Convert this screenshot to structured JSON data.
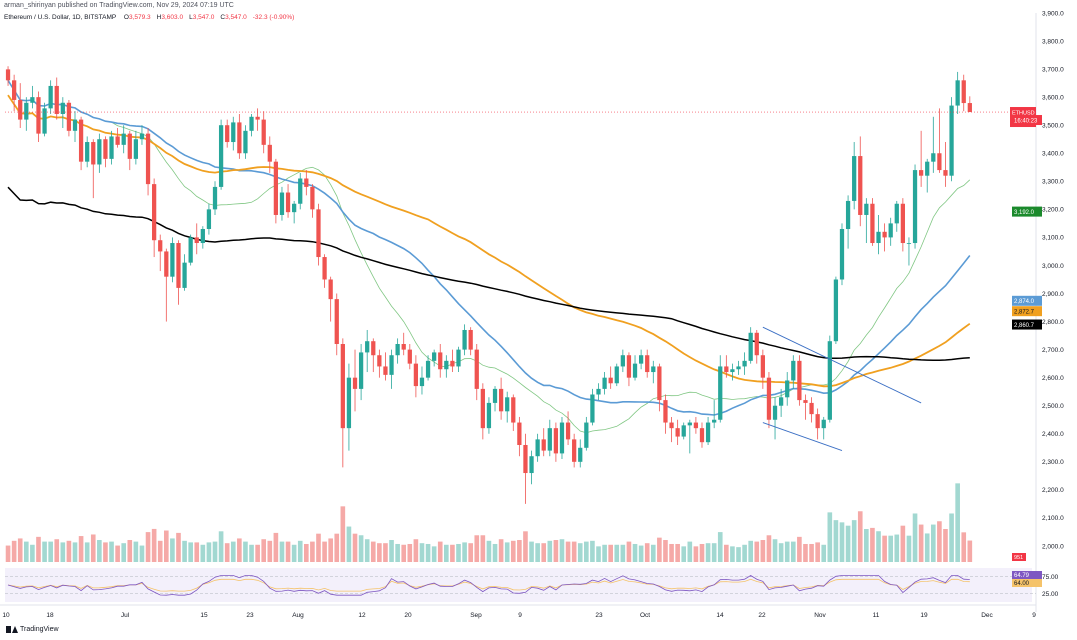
{
  "header": {
    "published": "arman_shirinyan published on TradingView.com, Nov 29, 2024 07:19 UTC",
    "symbol": "Ethereum / U.S. Dollar, 1D, BITSTAMP",
    "ohlc": [
      {
        "label": "O",
        "value": "3,579.3"
      },
      {
        "label": "H",
        "value": "3,603.0"
      },
      {
        "label": "L",
        "value": "3,547.0"
      },
      {
        "label": "C",
        "value": "3,547.0"
      },
      {
        "label": "",
        "value": "-32.3 (-0.90%)"
      }
    ]
  },
  "footer": {
    "brand": "TradingView"
  },
  "colors": {
    "up": "#26a69a",
    "down": "#ef5350",
    "vol_up": "#a2d8d1",
    "vol_down": "#f5a9a7",
    "ema_black": "#000000",
    "ema_orange": "#f0a020",
    "ema_blue": "#5b9bd5",
    "ema_green": "#81c784",
    "rsi": "#7e57c2",
    "rsi_ma": "#f5c36a",
    "wedge": "#3b6fc4"
  },
  "chart_data": {
    "type": "candlestick",
    "symbol": "ETHUSD",
    "ylim": [
      1950,
      3900
    ],
    "y_ticks": [
      "3,900.0",
      "3,800.0",
      "3,700.0",
      "3,600.0",
      "3,500.0",
      "3,400.0",
      "3,300.0",
      "3,200.0",
      "3,100.0",
      "3,000.0",
      "2,900.0",
      "2,800.0",
      "2,700.0",
      "2,600.0",
      "2,500.0",
      "2,400.0",
      "2,300.0",
      "2,200.0",
      "2,100.0",
      "2,000.0"
    ],
    "x_ticks": [
      "10",
      "18",
      "Jul",
      "15",
      "23",
      "Aug",
      "12",
      "20",
      "Sep",
      "9",
      "23",
      "Oct",
      "14",
      "22",
      "Nov",
      "11",
      "19",
      "Dec",
      "9"
    ],
    "candles": [
      [
        3699,
        3710,
        3640,
        3660
      ],
      [
        3660,
        3680,
        3550,
        3590
      ],
      [
        3590,
        3650,
        3490,
        3520
      ],
      [
        3520,
        3600,
        3480,
        3580
      ],
      [
        3580,
        3640,
        3560,
        3600
      ],
      [
        3600,
        3620,
        3440,
        3470
      ],
      [
        3470,
        3580,
        3460,
        3560
      ],
      [
        3560,
        3660,
        3540,
        3640
      ],
      [
        3640,
        3670,
        3520,
        3540
      ],
      [
        3540,
        3600,
        3490,
        3580
      ],
      [
        3580,
        3590,
        3460,
        3480
      ],
      [
        3480,
        3550,
        3440,
        3520
      ],
      [
        3520,
        3530,
        3340,
        3370
      ],
      [
        3370,
        3460,
        3350,
        3440
      ],
      [
        3440,
        3450,
        3240,
        3360
      ],
      [
        3360,
        3470,
        3330,
        3450
      ],
      [
        3450,
        3460,
        3350,
        3380
      ],
      [
        3380,
        3480,
        3360,
        3460
      ],
      [
        3460,
        3490,
        3420,
        3430
      ],
      [
        3430,
        3500,
        3400,
        3470
      ],
      [
        3470,
        3480,
        3340,
        3380
      ],
      [
        3380,
        3480,
        3360,
        3450
      ],
      [
        3450,
        3500,
        3430,
        3470
      ],
      [
        3470,
        3490,
        3250,
        3290
      ],
      [
        3290,
        3310,
        3030,
        3090
      ],
      [
        3090,
        3110,
        2980,
        3050
      ],
      [
        3050,
        3060,
        2800,
        2960
      ],
      [
        2960,
        3100,
        2940,
        3080
      ],
      [
        3080,
        3090,
        2860,
        2920
      ],
      [
        2920,
        3040,
        2910,
        3010
      ],
      [
        3010,
        3110,
        3000,
        3100
      ],
      [
        3100,
        3150,
        3040,
        3080
      ],
      [
        3080,
        3140,
        3060,
        3130
      ],
      [
        3130,
        3220,
        3110,
        3200
      ],
      [
        3200,
        3300,
        3180,
        3280
      ],
      [
        3280,
        3520,
        3270,
        3500
      ],
      [
        3500,
        3520,
        3420,
        3440
      ],
      [
        3440,
        3530,
        3410,
        3510
      ],
      [
        3510,
        3540,
        3380,
        3400
      ],
      [
        3400,
        3500,
        3380,
        3480
      ],
      [
        3480,
        3540,
        3460,
        3530
      ],
      [
        3530,
        3560,
        3480,
        3520
      ],
      [
        3520,
        3550,
        3400,
        3430
      ],
      [
        3430,
        3460,
        3330,
        3370
      ],
      [
        3370,
        3380,
        3150,
        3180
      ],
      [
        3180,
        3280,
        3160,
        3260
      ],
      [
        3260,
        3290,
        3170,
        3190
      ],
      [
        3190,
        3230,
        3150,
        3220
      ],
      [
        3220,
        3330,
        3200,
        3310
      ],
      [
        3310,
        3340,
        3250,
        3280
      ],
      [
        3280,
        3290,
        3170,
        3200
      ],
      [
        3200,
        3220,
        3000,
        3030
      ],
      [
        3030,
        3040,
        2920,
        2950
      ],
      [
        2950,
        2960,
        2800,
        2880
      ],
      [
        2880,
        2900,
        2680,
        2720
      ],
      [
        2720,
        2740,
        2280,
        2420
      ],
      [
        2420,
        2650,
        2340,
        2600
      ],
      [
        2600,
        2700,
        2480,
        2560
      ],
      [
        2560,
        2720,
        2520,
        2690
      ],
      [
        2690,
        2770,
        2620,
        2730
      ],
      [
        2730,
        2740,
        2620,
        2680
      ],
      [
        2680,
        2700,
        2600,
        2640
      ],
      [
        2640,
        2690,
        2590,
        2610
      ],
      [
        2610,
        2700,
        2560,
        2680
      ],
      [
        2680,
        2740,
        2650,
        2720
      ],
      [
        2720,
        2760,
        2680,
        2700
      ],
      [
        2700,
        2720,
        2630,
        2650
      ],
      [
        2650,
        2680,
        2530,
        2570
      ],
      [
        2570,
        2640,
        2540,
        2600
      ],
      [
        2600,
        2680,
        2590,
        2660
      ],
      [
        2660,
        2700,
        2640,
        2690
      ],
      [
        2690,
        2720,
        2600,
        2630
      ],
      [
        2630,
        2680,
        2600,
        2660
      ],
      [
        2660,
        2700,
        2620,
        2640
      ],
      [
        2640,
        2710,
        2620,
        2700
      ],
      [
        2700,
        2790,
        2680,
        2770
      ],
      [
        2770,
        2780,
        2680,
        2700
      ],
      [
        2700,
        2720,
        2520,
        2560
      ],
      [
        2560,
        2580,
        2380,
        2420
      ],
      [
        2420,
        2530,
        2400,
        2510
      ],
      [
        2510,
        2570,
        2480,
        2560
      ],
      [
        2560,
        2600,
        2450,
        2480
      ],
      [
        2480,
        2550,
        2440,
        2530
      ],
      [
        2530,
        2540,
        2410,
        2440
      ],
      [
        2440,
        2460,
        2320,
        2360
      ],
      [
        2360,
        2400,
        2150,
        2260
      ],
      [
        2260,
        2340,
        2220,
        2320
      ],
      [
        2320,
        2400,
        2300,
        2380
      ],
      [
        2380,
        2420,
        2320,
        2340
      ],
      [
        2340,
        2450,
        2320,
        2420
      ],
      [
        2420,
        2440,
        2300,
        2330
      ],
      [
        2330,
        2460,
        2310,
        2440
      ],
      [
        2440,
        2480,
        2360,
        2380
      ],
      [
        2380,
        2400,
        2280,
        2300
      ],
      [
        2300,
        2380,
        2280,
        2350
      ],
      [
        2350,
        2460,
        2340,
        2440
      ],
      [
        2440,
        2560,
        2430,
        2540
      ],
      [
        2540,
        2580,
        2520,
        2560
      ],
      [
        2560,
        2620,
        2540,
        2600
      ],
      [
        2600,
        2640,
        2560,
        2580
      ],
      [
        2580,
        2650,
        2570,
        2640
      ],
      [
        2640,
        2700,
        2620,
        2680
      ],
      [
        2680,
        2690,
        2570,
        2600
      ],
      [
        2600,
        2680,
        2590,
        2650
      ],
      [
        2650,
        2700,
        2630,
        2680
      ],
      [
        2680,
        2700,
        2600,
        2620
      ],
      [
        2620,
        2660,
        2580,
        2640
      ],
      [
        2640,
        2650,
        2480,
        2520
      ],
      [
        2520,
        2540,
        2400,
        2440
      ],
      [
        2440,
        2460,
        2370,
        2420
      ],
      [
        2420,
        2450,
        2360,
        2390
      ],
      [
        2390,
        2440,
        2380,
        2430
      ],
      [
        2430,
        2450,
        2330,
        2440
      ],
      [
        2440,
        2460,
        2400,
        2420
      ],
      [
        2420,
        2440,
        2350,
        2370
      ],
      [
        2370,
        2460,
        2360,
        2440
      ],
      [
        2440,
        2520,
        2420,
        2450
      ],
      [
        2450,
        2680,
        2440,
        2640
      ],
      [
        2640,
        2680,
        2600,
        2620
      ],
      [
        2620,
        2650,
        2590,
        2630
      ],
      [
        2630,
        2660,
        2610,
        2640
      ],
      [
        2640,
        2690,
        2610,
        2660
      ],
      [
        2660,
        2780,
        2650,
        2760
      ],
      [
        2760,
        2770,
        2650,
        2680
      ],
      [
        2680,
        2700,
        2560,
        2600
      ],
      [
        2600,
        2620,
        2420,
        2450
      ],
      [
        2450,
        2530,
        2380,
        2500
      ],
      [
        2500,
        2560,
        2460,
        2530
      ],
      [
        2530,
        2620,
        2500,
        2590
      ],
      [
        2590,
        2680,
        2560,
        2660
      ],
      [
        2660,
        2680,
        2500,
        2520
      ],
      [
        2520,
        2540,
        2450,
        2510
      ],
      [
        2510,
        2530,
        2440,
        2470
      ],
      [
        2470,
        2490,
        2380,
        2420
      ],
      [
        2420,
        2460,
        2380,
        2450
      ],
      [
        2450,
        2750,
        2440,
        2730
      ],
      [
        2730,
        2960,
        2720,
        2950
      ],
      [
        2950,
        3150,
        2930,
        3130
      ],
      [
        3130,
        3250,
        3060,
        3230
      ],
      [
        3230,
        3440,
        3200,
        3390
      ],
      [
        3390,
        3460,
        3140,
        3180
      ],
      [
        3180,
        3240,
        3080,
        3220
      ],
      [
        3220,
        3240,
        3070,
        3080
      ],
      [
        3080,
        3180,
        3040,
        3120
      ],
      [
        3120,
        3150,
        3050,
        3100
      ],
      [
        3100,
        3170,
        3070,
        3150
      ],
      [
        3150,
        3230,
        3120,
        3220
      ],
      [
        3220,
        3240,
        3050,
        3080
      ],
      [
        3080,
        3100,
        3000,
        3080
      ],
      [
        3080,
        3360,
        3060,
        3340
      ],
      [
        3340,
        3480,
        3280,
        3320
      ],
      [
        3320,
        3380,
        3260,
        3370
      ],
      [
        3370,
        3530,
        3330,
        3400
      ],
      [
        3400,
        3560,
        3330,
        3340
      ],
      [
        3340,
        3440,
        3280,
        3320
      ],
      [
        3320,
        3600,
        3300,
        3570
      ],
      [
        3570,
        3690,
        3540,
        3660
      ],
      [
        3660,
        3680,
        3550,
        3579
      ],
      [
        3579,
        3603,
        3547,
        3547
      ]
    ],
    "volume_scale": [
      0,
      100
    ],
    "labels": [
      {
        "text": "ETHUSD",
        "color": "#f23645"
      },
      {
        "text": "3,547.0",
        "color": "#f23645"
      },
      {
        "text": "16:40:23",
        "color": "#f23645"
      },
      {
        "text": "3,192.0",
        "color": "#1b8a2c"
      },
      {
        "text": "2,874.0",
        "color": "#5b9bd5"
      },
      {
        "text": "2,872.7",
        "color": "#f0a020"
      },
      {
        "text": "2,860.7",
        "color": "#000000"
      }
    ],
    "rsi": {
      "ticks": [
        "75.00",
        "25.00"
      ],
      "labels": [
        {
          "text": "64.79",
          "color": "#7e57c2"
        },
        {
          "text": "64.00",
          "color": "#f5c36a"
        }
      ],
      "upper": 75,
      "lower": 25
    },
    "volume_label": "951"
  }
}
